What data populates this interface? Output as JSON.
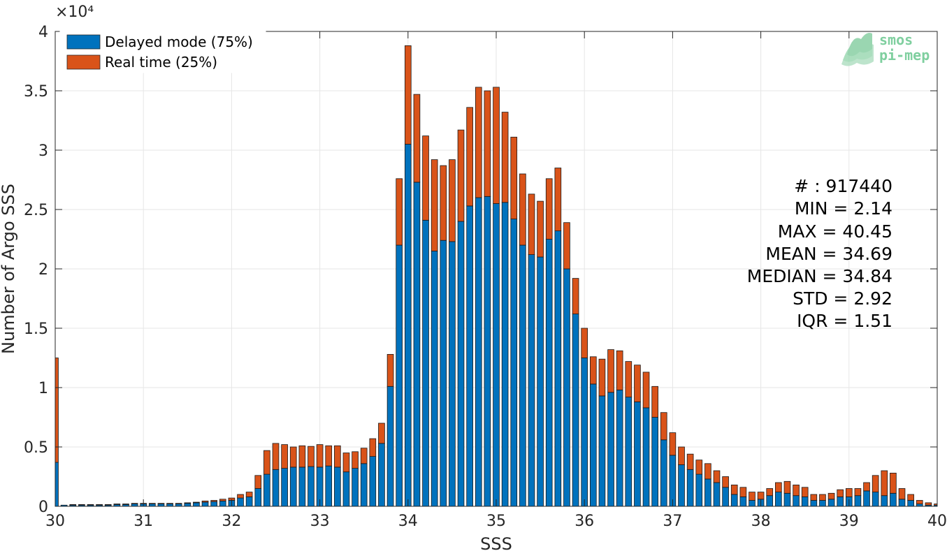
{
  "colors": {
    "delayed": "#0072BD",
    "realtime": "#D95319",
    "grid": "#e6e6e6",
    "axis": "#262626",
    "logo": "#7fcf9f"
  },
  "logo": {
    "line1": "smos",
    "line2": "pi-mep"
  },
  "chart_data": {
    "type": "bar",
    "stacked": true,
    "xlabel": "SSS",
    "ylabel": "Number of Argo SSS",
    "y_exponent_label": "×10⁴",
    "xlim": [
      30,
      40
    ],
    "ylim": [
      0,
      40000
    ],
    "grid": true,
    "legend_position": "top-left",
    "x_ticks": [
      {
        "value": 30,
        "label": "30"
      },
      {
        "value": 31,
        "label": "31"
      },
      {
        "value": 32,
        "label": "32"
      },
      {
        "value": 33,
        "label": "33"
      },
      {
        "value": 34,
        "label": "34"
      },
      {
        "value": 35,
        "label": "35"
      },
      {
        "value": 36,
        "label": "36"
      },
      {
        "value": 37,
        "label": "37"
      },
      {
        "value": 38,
        "label": "38"
      },
      {
        "value": 39,
        "label": "39"
      },
      {
        "value": 40,
        "label": "40"
      }
    ],
    "y_ticks": [
      {
        "value": 0,
        "label": "0"
      },
      {
        "value": 5000,
        "label": "0.5"
      },
      {
        "value": 10000,
        "label": "1"
      },
      {
        "value": 15000,
        "label": "1.5"
      },
      {
        "value": 20000,
        "label": "2"
      },
      {
        "value": 25000,
        "label": "2.5"
      },
      {
        "value": 30000,
        "label": "3"
      },
      {
        "value": 35000,
        "label": "3.5"
      },
      {
        "value": 40000,
        "label": "4"
      }
    ],
    "bin_start": 30.0,
    "bin_width": 0.1,
    "bar_width_fraction": 0.7,
    "series": [
      {
        "name": "Delayed mode (75%)",
        "key": "delayed",
        "values": [
          3700,
          100,
          100,
          100,
          100,
          100,
          100,
          150,
          150,
          200,
          200,
          200,
          200,
          200,
          200,
          250,
          300,
          350,
          400,
          450,
          500,
          700,
          800,
          1500,
          2700,
          3100,
          3200,
          3300,
          3300,
          3350,
          3300,
          3400,
          3300,
          2900,
          3200,
          3600,
          4200,
          5300,
          10100,
          22000,
          30500,
          27300,
          24100,
          21500,
          22400,
          22300,
          24000,
          25300,
          26000,
          26100,
          25500,
          25600,
          24200,
          22000,
          21200,
          21000,
          22500,
          23200,
          20000,
          16200,
          12500,
          10300,
          9300,
          9600,
          9800,
          9200,
          8800,
          8300,
          7500,
          5600,
          4300,
          3500,
          3100,
          2700,
          2300,
          2000,
          1600,
          1000,
          800,
          500,
          600,
          900,
          1200,
          1100,
          900,
          800,
          500,
          500,
          600,
          800,
          800,
          900,
          1300,
          1200,
          900,
          1100,
          600,
          500,
          200,
          100,
          100
        ],
        "end": 40.0
      },
      {
        "name": "Real time (25%)",
        "key": "realtime",
        "values": [
          8800,
          0,
          50,
          50,
          50,
          50,
          50,
          50,
          50,
          50,
          50,
          50,
          50,
          50,
          50,
          50,
          50,
          100,
          100,
          150,
          200,
          300,
          400,
          1100,
          2000,
          2200,
          2000,
          1700,
          1800,
          1700,
          1900,
          1700,
          1800,
          1600,
          1400,
          1300,
          1500,
          1700,
          2700,
          5600,
          8300,
          7400,
          7100,
          7700,
          6300,
          6900,
          7700,
          8300,
          9300,
          8900,
          9800,
          7600,
          6900,
          6000,
          5100,
          4700,
          5100,
          5300,
          3900,
          3000,
          2500,
          2300,
          3100,
          3600,
          3300,
          3000,
          3100,
          3000,
          2600,
          2300,
          1900,
          1500,
          1300,
          1200,
          1300,
          1000,
          900,
          800,
          800,
          700,
          600,
          600,
          800,
          1000,
          900,
          800,
          500,
          500,
          500,
          600,
          700,
          600,
          700,
          1400,
          2100,
          1700,
          900,
          500,
          300,
          200,
          100
        ]
      }
    ],
    "stats": [
      "# : 917440",
      "MIN = 2.14",
      "MAX =  40.45",
      "MEAN = 34.69",
      "MEDIAN = 34.84",
      "STD = 2.92",
      "IQR = 1.51"
    ]
  }
}
